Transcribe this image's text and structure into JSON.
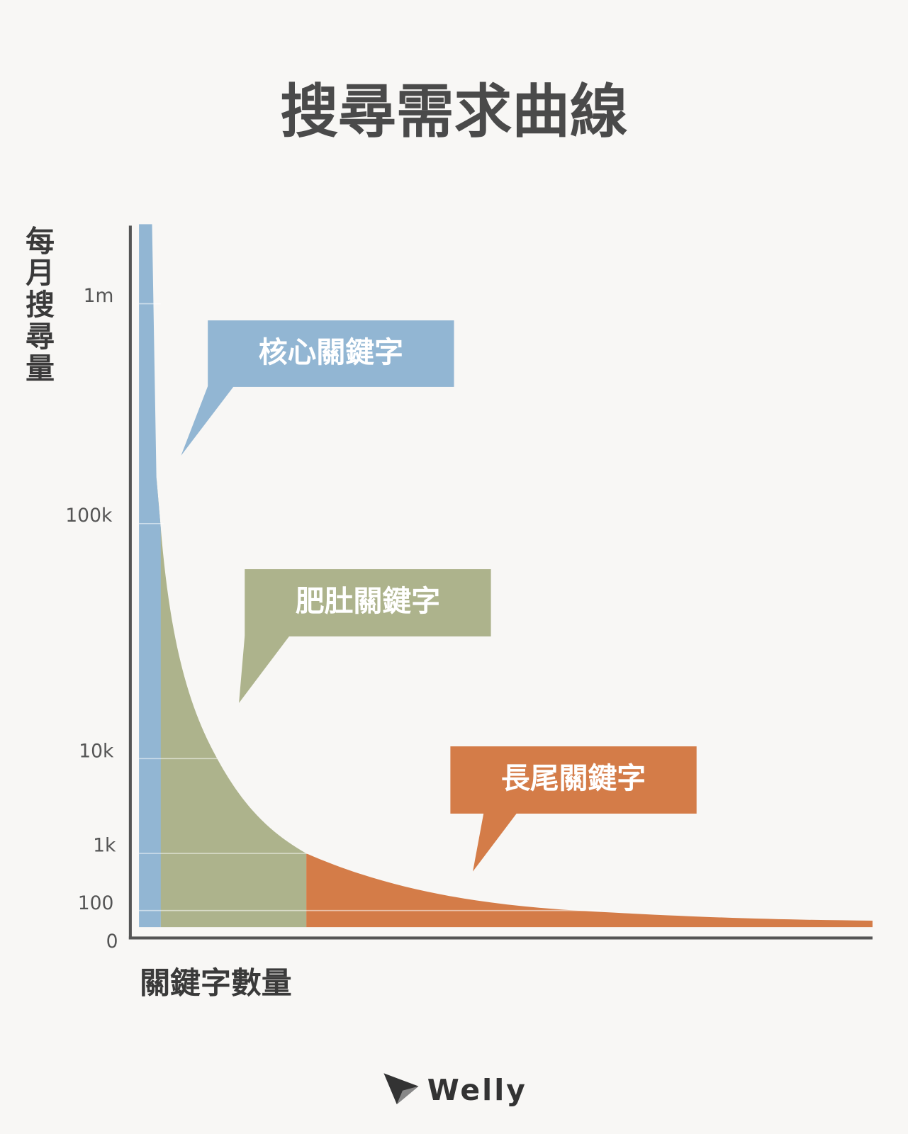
{
  "title": "搜尋需求曲線",
  "y_axis_label": "每月搜尋量",
  "x_axis_label": "關鍵字數量",
  "ticks": [
    "1m",
    "100k",
    "10k",
    "1k",
    "100",
    "0"
  ],
  "callouts": [
    {
      "label": "核心關鍵字"
    },
    {
      "label": "肥肚關鍵字"
    },
    {
      "label": "長尾關鍵字"
    }
  ],
  "brand": "Welly"
}
